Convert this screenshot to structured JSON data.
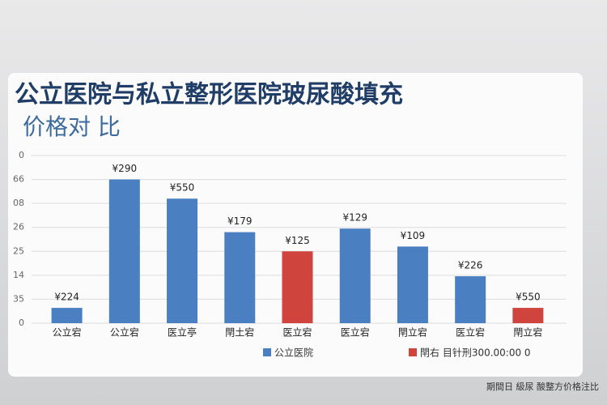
{
  "chart_data": {
    "type": "bar",
    "title": "公立医院与私立整形医院玻尿酸填充",
    "subtitle": "价格对 比",
    "categories": [
      "公立宕",
      "公立宕",
      "医立亭",
      "閈土宕",
      "医立宕",
      "医立宕",
      "閈立宕",
      "医立宕",
      "閈立宕"
    ],
    "values": [
      0.64,
      6.0,
      5.2,
      3.8,
      3.0,
      3.95,
      3.2,
      1.96,
      0.64
    ],
    "bar_labels": [
      "¥224",
      "¥290",
      "¥550",
      "¥179",
      "¥125",
      "¥129",
      "¥109",
      "¥226",
      "¥550"
    ],
    "colors": [
      "#4a7fc1",
      "#4a7fc1",
      "#4a7fc1",
      "#4a7fc1",
      "#d0443e",
      "#4a7fc1",
      "#4a7fc1",
      "#4a7fc1",
      "#d0443e"
    ],
    "ylim": [
      0,
      7
    ],
    "yticks": [
      {
        "value": 0,
        "label": "0"
      },
      {
        "value": 1,
        "label": "35"
      },
      {
        "value": 2,
        "label": "14"
      },
      {
        "value": 3,
        "label": "25"
      },
      {
        "value": 4,
        "label": "26"
      },
      {
        "value": 5,
        "label": "08"
      },
      {
        "value": 6,
        "label": "66"
      },
      {
        "value": 7,
        "label": "0"
      }
    ],
    "grid": true,
    "legend": [
      {
        "name": "公立医院",
        "color": "#4a7fc1"
      },
      {
        "name": "閈右 目针刑300.00:00 0",
        "color": "#d0443e"
      }
    ],
    "footer": "期間日 級尿 酸整方价格注比"
  }
}
